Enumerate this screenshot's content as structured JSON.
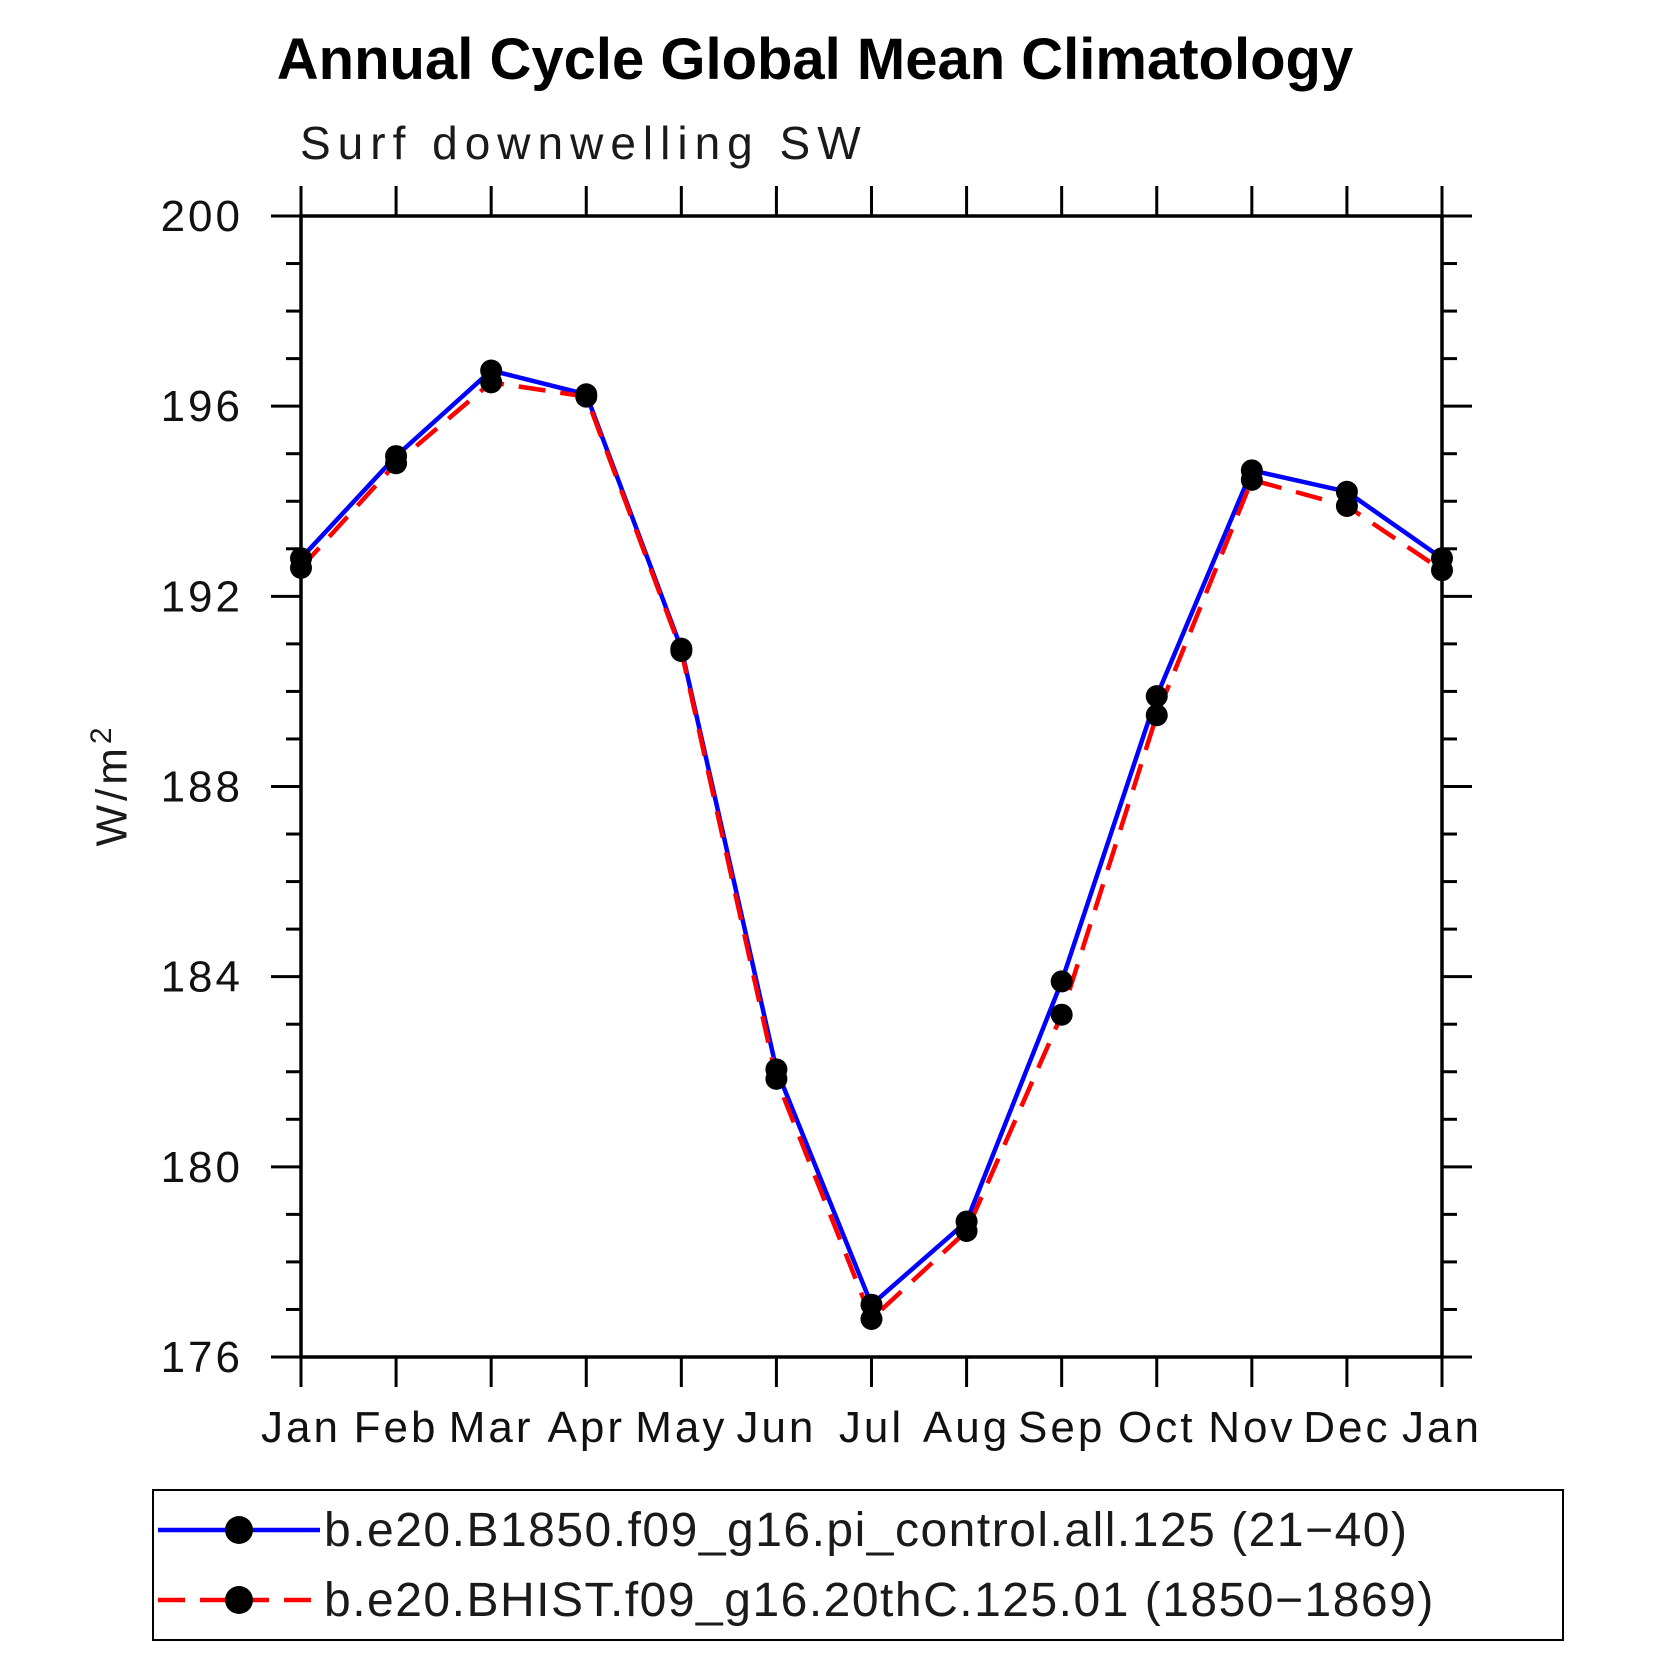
{
  "title": "Annual Cycle Global Mean Climatology",
  "subtitle": "Surf downwelling SW",
  "ylabel_base": "W/m",
  "ylabel_exponent": "2",
  "chart_data": {
    "type": "line",
    "categories": [
      "Jan",
      "Feb",
      "Mar",
      "Apr",
      "May",
      "Jun",
      "Jul",
      "Aug",
      "Sep",
      "Oct",
      "Nov",
      "Dec",
      "Jan"
    ],
    "series": [
      {
        "name": "b.e20.B1850.f09_g16.pi_control.all.125 (21−40)",
        "color": "#0000ff",
        "line_style": "solid",
        "marker": "circle",
        "marker_color": "#000000",
        "values": [
          192.8,
          194.95,
          196.75,
          196.25,
          190.9,
          182.05,
          177.1,
          178.85,
          183.9,
          189.9,
          194.65,
          194.2,
          192.8
        ]
      },
      {
        "name": "b.e20.BHIST.f09_g16.20thC.125.01 (1850−1869)",
        "color": "#ff0000",
        "line_style": "dashed",
        "marker": "circle",
        "marker_color": "#000000",
        "values": [
          192.6,
          194.8,
          196.5,
          196.2,
          190.85,
          181.85,
          176.8,
          178.65,
          183.2,
          189.5,
          194.45,
          193.9,
          192.55
        ]
      }
    ],
    "xlabel": "",
    "ylabel": "W/m²",
    "ylim": [
      176,
      200
    ],
    "ytick_major_step": 4,
    "ytick_minor_step": 1,
    "ytick_labels": [
      "176",
      "180",
      "184",
      "188",
      "192",
      "196",
      "200"
    ],
    "grid": false,
    "legend_position": "bottom",
    "axis_color": "#000000"
  },
  "legend": {
    "items": [
      {
        "label": "b.e20.B1850.f09_g16.pi_control.all.125 (21−40)"
      },
      {
        "label": "b.e20.BHIST.f09_g16.20thC.125.01 (1850−1869)"
      }
    ]
  }
}
